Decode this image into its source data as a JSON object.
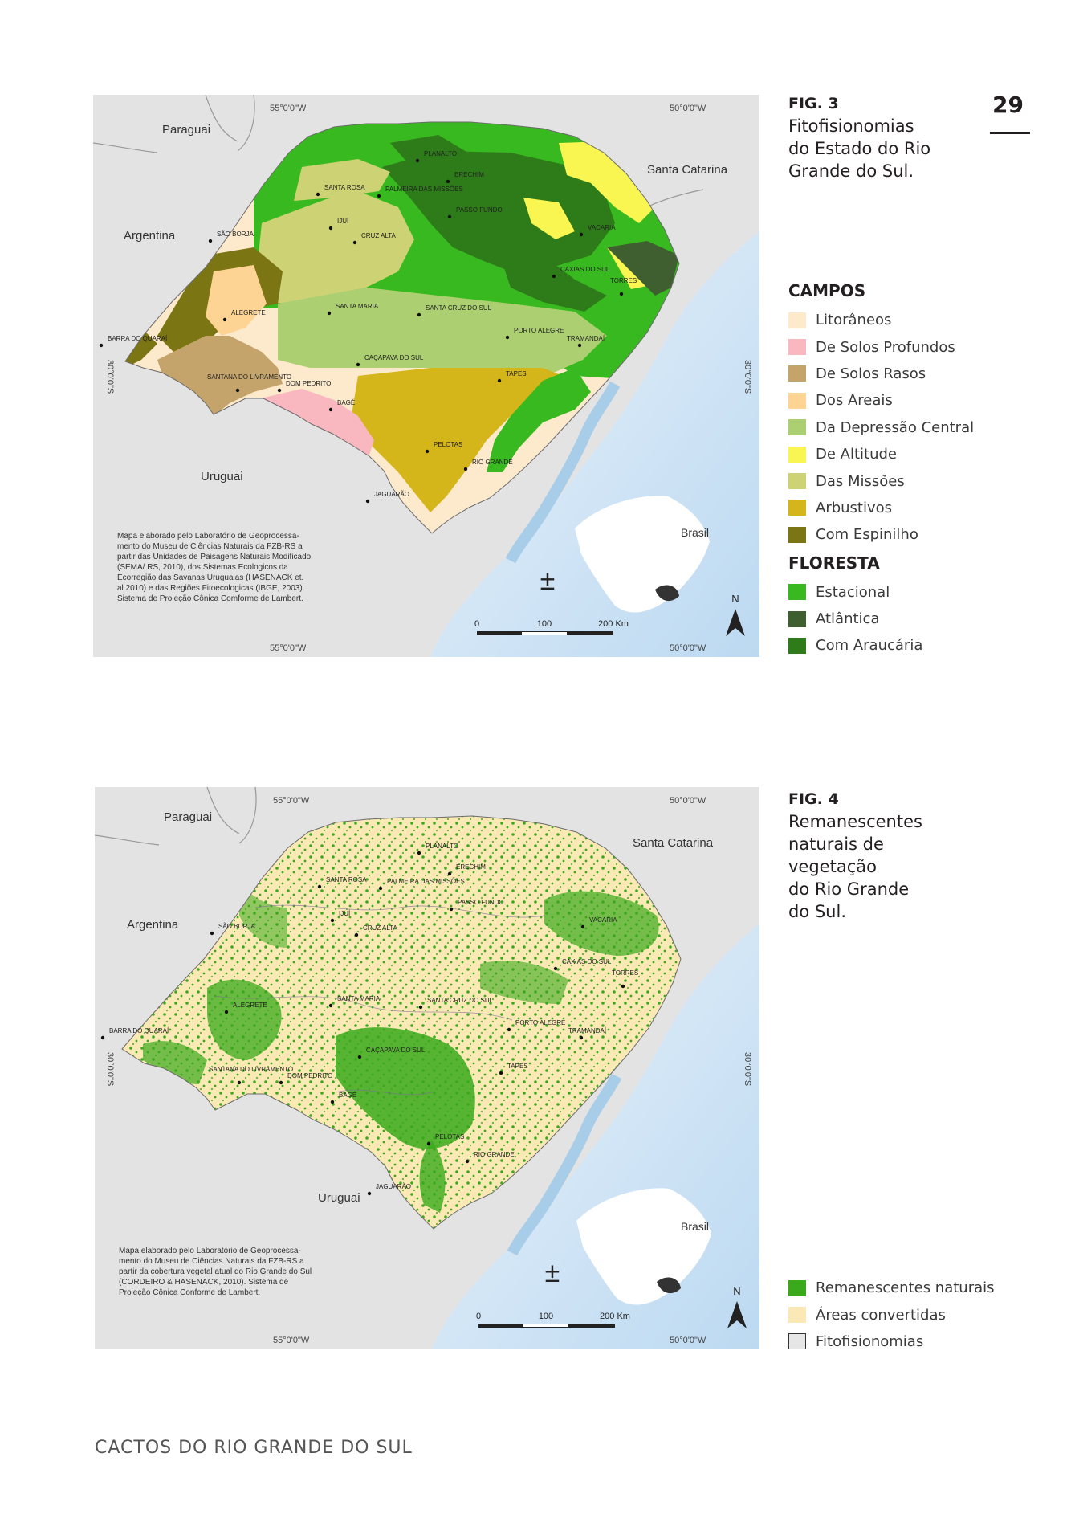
{
  "page": {
    "number": "29",
    "footer": "CACTOS DO RIO GRANDE DO SUL"
  },
  "fig3": {
    "label": "FIG. 3",
    "caption": "Fitofisionomias\ndo Estado do Rio\nGrande do Sul.",
    "map": {
      "coords": {
        "top_left": "55°0'0\"W",
        "top_right": "50°0'0\"W",
        "bottom_left": "55°0'0\"W",
        "bottom_right": "50°0'0\"W",
        "lat_left": "30°0'0\"S",
        "lat_right": "30°0'0\"S"
      },
      "countries": {
        "paraguai": "Paraguai",
        "argentina": "Argentina",
        "uruguai": "Uruguai",
        "santa_catarina": "Santa Catarina",
        "brasil": "Brasil"
      },
      "cities": [
        "PLANALTO",
        "ERECHIM",
        "SANTA ROSA",
        "PALMEIRA DAS MISSÕES",
        "PASSO FUNDO",
        "IJUÍ",
        "SÃO BORJA",
        "CRUZ ALTA",
        "VACARIA",
        "CAXIAS DO SUL",
        "TORRES",
        "ALEGRETE",
        "SANTA MARIA",
        "SANTA CRUZ DO SUL",
        "BARRA DO QUARAÍ",
        "PORTO ALEGRE",
        "TRAMANDAÍ",
        "CAÇAPAVA DO SUL",
        "TAPES",
        "SANTANA DO LIVRAMENTO",
        "DOM PEDRITO",
        "BAGÉ",
        "PELOTAS",
        "RIO GRANDE",
        "JAGUARÃO"
      ],
      "scale": [
        "0",
        "100",
        "200 Km"
      ],
      "north": "N",
      "note": "Mapa elaborado pelo Laboratório de Geoprocessa-\nmento do Museu de Ciências Naturais da FZB-RS a\npartir das Unidades de Paisagens Naturais Modificado\n(SEMA/ RS, 2010), dos Sistemas Ecologicos da\nEcorregião das Savanas Uruguaias (HASENACK et.\nal 2010) e das Regiões Fitoecologicas (IBGE, 2003).\nSistema de Projeção Cônica Comforme de Lambert."
    }
  },
  "legend1": {
    "campos_title": "CAMPOS",
    "campos": [
      {
        "label": "Litorâneos",
        "color": "#fde9cb"
      },
      {
        "label": "De Solos Profundos",
        "color": "#f9b8c0"
      },
      {
        "label": "De Solos Rasos",
        "color": "#c4a46a"
      },
      {
        "label": "Dos Areais",
        "color": "#fdd494"
      },
      {
        "label": "Da Depressão Central",
        "color": "#acd071"
      },
      {
        "label": "De Altitude",
        "color": "#f9f652"
      },
      {
        "label": "Das Missões",
        "color": "#cdd274"
      },
      {
        "label": "Arbustivos",
        "color": "#d4b51a"
      },
      {
        "label": "Com Espinilho",
        "color": "#7b7513"
      }
    ],
    "floresta_title": "FLORESTA",
    "floresta": [
      {
        "label": "Estacional",
        "color": "#38b91f"
      },
      {
        "label": "Atlântica",
        "color": "#3f5f30"
      },
      {
        "label": "Com Araucária",
        "color": "#2d7c19"
      }
    ]
  },
  "fig4": {
    "label": "FIG. 4",
    "caption": "Remanescentes\nnaturais de\nvegetação\ndo Rio Grande\ndo Sul.",
    "map": {
      "coords": {
        "top_left": "55°0'0\"W",
        "top_right": "50°0'0\"W",
        "bottom_left": "55°0'0\"W",
        "bottom_right": "50°0'0\"W",
        "lat_left": "30°0'0\"S",
        "lat_right": "30°0'0\"S"
      },
      "countries": {
        "paraguai": "Paraguai",
        "argentina": "Argentina",
        "uruguai": "Uruguai",
        "santa_catarina": "Santa Catarina",
        "brasil": "Brasil"
      },
      "cities": [
        "PLANALTO",
        "ERECHIM",
        "SANTA ROSA",
        "PALMEIRA DAS MISSÕES",
        "PASSO FUNDO",
        "IJUÍ",
        "SÃO BORJA",
        "CRUZ ALTA",
        "VACARIA",
        "CAXIAS DO SUL",
        "TORRES",
        "ALEGRETE",
        "SANTA MARIA",
        "SANTA CRUZ DO SUL",
        "BARRA DO QUARAÍ",
        "PORTO ALEGRE",
        "TRAMANDAÍ",
        "CAÇAPAVA DO SUL",
        "TAPES",
        "SANTANA DO LIVRAMENTO",
        "DOM PEDRITO",
        "BAGÉ",
        "PELOTAS",
        "RIO GRANDE",
        "JAGUARÃO"
      ],
      "scale": [
        "0",
        "100",
        "200 Km"
      ],
      "north": "N",
      "note": "Mapa elaborado pelo Laboratório de Geoprocessa-\nmento do Museu de Ciências Naturais da FZB-RS a\npartir da cobertura vegetal atual do Rio Grande do Sul\n(CORDEIRO & HASENACK, 2010). Sistema de\nProjeção Cônica Conforme de Lambert."
    }
  },
  "legend2": {
    "items": [
      {
        "label": "Remanescentes naturais",
        "color": "#3aaa1c"
      },
      {
        "label": "Áreas convertidas",
        "color": "#fbe9b5"
      },
      {
        "label": "Fitofisionomias",
        "color": "#e6e6e6"
      }
    ]
  }
}
